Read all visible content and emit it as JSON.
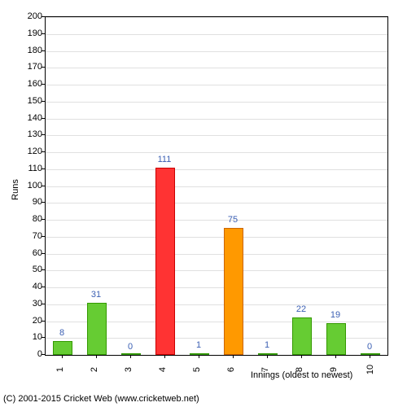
{
  "chart": {
    "type": "bar",
    "ylabel": "Runs",
    "xlabel": "Innings (oldest to newest)",
    "ylim": [
      0,
      200
    ],
    "ytick_step": 10,
    "categories": [
      "1",
      "2",
      "3",
      "4",
      "5",
      "6",
      "7",
      "8",
      "9",
      "10"
    ],
    "values": [
      8,
      31,
      0,
      111,
      1,
      75,
      1,
      22,
      19,
      0
    ],
    "bar_colors": [
      "#66cc33",
      "#66cc33",
      "#66cc33",
      "#ff3333",
      "#66cc33",
      "#ff9900",
      "#66cc33",
      "#66cc33",
      "#66cc33",
      "#66cc33"
    ],
    "bar_border_colors": [
      "#339900",
      "#339900",
      "#339900",
      "#cc0000",
      "#339900",
      "#cc6600",
      "#339900",
      "#339900",
      "#339900",
      "#339900"
    ],
    "label_color": "#3b5fb3",
    "label_fontsize": 11,
    "background_color": "#ffffff",
    "grid_color": "#e0e0e0",
    "axis_color": "#000000",
    "tick_fontsize": 11,
    "bar_width": 0.55
  },
  "copyright": "(C) 2001-2015 Cricket Web (www.cricketweb.net)"
}
